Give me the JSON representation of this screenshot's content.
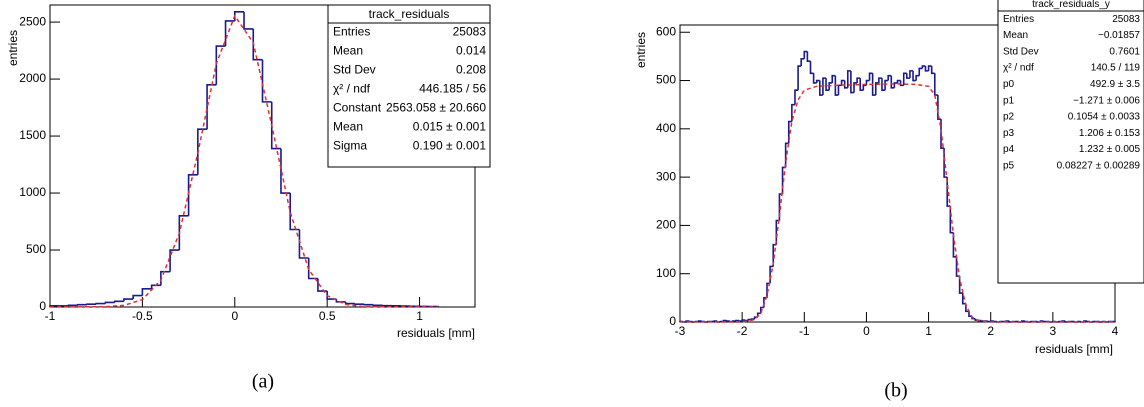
{
  "chart_data": [
    {
      "type": "histogram",
      "caption": "(a)",
      "x_label": "residuals [mm]",
      "y_label": "entries",
      "color": "#1a1a8c",
      "bins": [
        -1.0,
        -0.95,
        -0.9,
        -0.85,
        -0.8,
        -0.75,
        -0.7,
        -0.65,
        -0.6,
        -0.55,
        -0.5,
        -0.45,
        -0.4,
        -0.35,
        -0.3,
        -0.25,
        -0.2,
        -0.15,
        -0.1,
        -0.05,
        0,
        0.05,
        0.1,
        0.15,
        0.2,
        0.25,
        0.3,
        0.35,
        0.4,
        0.45,
        0.5,
        0.55,
        0.6,
        0.65,
        0.7,
        0.75,
        0.8,
        0.85,
        0.9,
        0.95,
        1.0,
        1.05,
        1.1
      ],
      "values": [
        10,
        10,
        15,
        20,
        25,
        30,
        40,
        50,
        70,
        100,
        160,
        190,
        310,
        500,
        800,
        1160,
        1560,
        1950,
        2290,
        2510,
        2590,
        2440,
        2170,
        1800,
        1390,
        1000,
        680,
        430,
        250,
        140,
        70,
        45,
        30,
        25,
        20,
        15,
        12,
        10,
        8,
        6,
        5,
        4
      ],
      "fit": {
        "color": "#e03030",
        "x": [
          -1,
          -0.7,
          -0.6,
          -0.5,
          -0.4,
          -0.3,
          -0.2,
          -0.1,
          0,
          0.1,
          0.2,
          0.3,
          0.4,
          0.5,
          0.6,
          0.7,
          1.1
        ],
        "values": [
          0,
          3,
          14,
          65,
          236,
          648,
          1351,
          2134,
          2555,
          2319,
          1595,
          832,
          329,
          99,
          22,
          3,
          0
        ]
      },
      "xlim": [
        -1,
        1.3
      ],
      "ylim": [
        0,
        2650
      ],
      "xticks": [
        -1,
        -0.5,
        0,
        0.5,
        1
      ],
      "yticks": [
        0,
        500,
        1000,
        1500,
        2000,
        2500
      ],
      "stats": {
        "title": "track_residuals",
        "rows": [
          [
            "Entries",
            "25083"
          ],
          [
            "Mean",
            "0.014"
          ],
          [
            "Std Dev",
            "0.208"
          ],
          [
            "χ² / ndf",
            "446.185 / 56"
          ],
          [
            "Constant",
            "2563.058 ± 20.660"
          ],
          [
            "Mean",
            "0.015 ± 0.001"
          ],
          [
            "Sigma",
            "0.190 ± 0.001"
          ]
        ]
      }
    },
    {
      "type": "histogram",
      "caption": "(b)",
      "x_label": "residuals [mm]",
      "y_label": "entries",
      "color": "#1a1a8c",
      "bins": [
        -3,
        -2.95,
        -2.9,
        -2.85,
        -2.8,
        -2.75,
        -2.7,
        -2.65,
        -2.6,
        -2.55,
        -2.5,
        -2.45,
        -2.4,
        -2.35,
        -2.3,
        -2.25,
        -2.2,
        -2.15,
        -2.1,
        -2.05,
        -2,
        -1.95,
        -1.9,
        -1.85,
        -1.8,
        -1.75,
        -1.7,
        -1.65,
        -1.6,
        -1.55,
        -1.5,
        -1.45,
        -1.4,
        -1.35,
        -1.3,
        -1.25,
        -1.2,
        -1.15,
        -1.1,
        -1.05,
        -1,
        -0.95,
        -0.9,
        -0.85,
        -0.8,
        -0.75,
        -0.7,
        -0.65,
        -0.6,
        -0.55,
        -0.5,
        -0.45,
        -0.4,
        -0.35,
        -0.3,
        -0.25,
        -0.2,
        -0.15,
        -0.1,
        -0.05,
        0,
        0.05,
        0.1,
        0.15,
        0.2,
        0.25,
        0.3,
        0.35,
        0.4,
        0.45,
        0.5,
        0.55,
        0.6,
        0.65,
        0.7,
        0.75,
        0.8,
        0.85,
        0.9,
        0.95,
        1,
        1.05,
        1.1,
        1.15,
        1.2,
        1.25,
        1.3,
        1.35,
        1.4,
        1.45,
        1.5,
        1.55,
        1.6,
        1.65,
        1.7,
        1.75,
        1.8,
        1.85,
        1.9,
        1.95,
        2,
        2.05,
        2.1,
        2.15,
        2.2,
        2.25,
        2.3,
        2.35,
        2.4,
        2.45,
        2.5,
        2.55,
        2.6,
        2.65,
        2.7,
        2.75,
        2.8,
        2.85,
        2.9,
        2.95,
        3,
        3.05,
        3.1,
        3.15,
        3.2,
        3.25,
        3.3,
        3.35,
        3.4,
        3.45,
        3.5,
        3.55,
        3.6,
        3.65,
        3.7,
        3.75,
        3.8,
        3.85,
        3.9,
        3.95,
        4
      ],
      "values": [
        1,
        0,
        2,
        1,
        0,
        1,
        2,
        1,
        0,
        1,
        1,
        2,
        0,
        1,
        3,
        2,
        1,
        2,
        3,
        2,
        4,
        3,
        5,
        6,
        10,
        18,
        30,
        50,
        80,
        115,
        160,
        210,
        265,
        320,
        370,
        415,
        450,
        480,
        530,
        545,
        560,
        540,
        515,
        495,
        500,
        470,
        505,
        480,
        495,
        510,
        470,
        490,
        500,
        485,
        520,
        475,
        495,
        505,
        480,
        490,
        500,
        515,
        470,
        495,
        505,
        480,
        500,
        510,
        485,
        495,
        500,
        490,
        515,
        505,
        520,
        500,
        510,
        525,
        530,
        520,
        530,
        515,
        470,
        420,
        360,
        300,
        240,
        185,
        135,
        95,
        60,
        38,
        22,
        12,
        7,
        4,
        3,
        2,
        2,
        1,
        2,
        1,
        0,
        1,
        1,
        2,
        0,
        1,
        1,
        0,
        2,
        1,
        0,
        1,
        1,
        0,
        2,
        1,
        1,
        0,
        1,
        0,
        1,
        2,
        0,
        1,
        1,
        0,
        1,
        0,
        2,
        1,
        0,
        1,
        1,
        0,
        1,
        0,
        1,
        1
      ],
      "fit": {
        "color": "#e03030",
        "x": [
          -3,
          -2,
          -1.8,
          -1.7,
          -1.6,
          -1.5,
          -1.4,
          -1.3,
          -1.2,
          -1.1,
          -1,
          -0.8,
          -0.5,
          0,
          0.5,
          0.8,
          1,
          1.1,
          1.2,
          1.3,
          1.4,
          1.5,
          1.6,
          1.7,
          1.8,
          2,
          4
        ],
        "values": [
          0,
          0,
          5,
          18,
          55,
          120,
          220,
          330,
          415,
          460,
          480,
          488,
          490,
          492,
          493,
          492,
          488,
          470,
          400,
          290,
          180,
          90,
          35,
          10,
          3,
          0,
          0
        ]
      },
      "xlim": [
        -3,
        4
      ],
      "ylim": [
        0,
        615
      ],
      "xticks": [
        -3,
        -2,
        -1,
        0,
        1,
        2,
        3,
        4
      ],
      "yticks": [
        0,
        100,
        200,
        300,
        400,
        500,
        600
      ],
      "stats": {
        "title": "track_residuals_y",
        "rows": [
          [
            "Entries",
            "25083"
          ],
          [
            "Mean",
            "−0.01857"
          ],
          [
            "Std Dev",
            "0.7601"
          ],
          [
            "χ² / ndf",
            "140.5 / 119"
          ],
          [
            "p0",
            "492.9 ± 3.5"
          ],
          [
            "p1",
            "−1.271 ± 0.006"
          ],
          [
            "p2",
            "0.1054 ± 0.0033"
          ],
          [
            "p3",
            "1.206 ± 0.153"
          ],
          [
            "p4",
            "1.232 ± 0.005"
          ],
          [
            "p5",
            "0.08227 ± 0.00289"
          ]
        ]
      }
    }
  ]
}
